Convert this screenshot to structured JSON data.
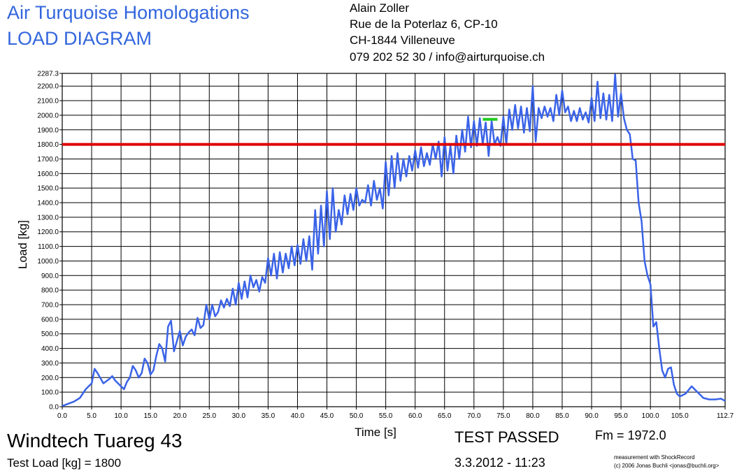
{
  "chart_data": {
    "type": "line",
    "title": "Air Turquoise Homologations",
    "subtitle": "LOAD DIAGRAM",
    "x_label": "Time [s]",
    "y_label": "Load [kg]",
    "color": "#3a63e8",
    "grid": true,
    "xlim": [
      0,
      112.7
    ],
    "ylim": [
      0,
      2287.3
    ],
    "xticks": [
      {
        "value": 0,
        "label": "0.0"
      },
      {
        "value": 5,
        "label": "5.0"
      },
      {
        "value": 10,
        "label": "10.0"
      },
      {
        "value": 15,
        "label": "15.0"
      },
      {
        "value": 20,
        "label": "20.0"
      },
      {
        "value": 25,
        "label": "25.0"
      },
      {
        "value": 30,
        "label": "30.0"
      },
      {
        "value": 35,
        "label": "35.0"
      },
      {
        "value": 40,
        "label": "40.0"
      },
      {
        "value": 45,
        "label": "45.0"
      },
      {
        "value": 50,
        "label": "50.0"
      },
      {
        "value": 55,
        "label": "55.0"
      },
      {
        "value": 60,
        "label": "60.0"
      },
      {
        "value": 65,
        "label": "65.0"
      },
      {
        "value": 70,
        "label": "70.0"
      },
      {
        "value": 75,
        "label": "75.0"
      },
      {
        "value": 80,
        "label": "80.0"
      },
      {
        "value": 85,
        "label": "85.0"
      },
      {
        "value": 90,
        "label": "90.0"
      },
      {
        "value": 95,
        "label": "95.0"
      },
      {
        "value": 100,
        "label": "100.0"
      },
      {
        "value": 105,
        "label": "105.0"
      },
      112.7
    ],
    "yticks": [
      {
        "value": 0,
        "label": "0.0"
      },
      {
        "value": 100,
        "label": "100.0"
      },
      {
        "value": 200,
        "label": "200.0"
      },
      {
        "value": 300,
        "label": "300.0"
      },
      {
        "value": 400,
        "label": "400.0"
      },
      {
        "value": 500,
        "label": "500.0"
      },
      {
        "value": 600,
        "label": "600.0"
      },
      {
        "value": 700,
        "label": "700.0"
      },
      {
        "value": 800,
        "label": "800.0"
      },
      {
        "value": 900,
        "label": "900.0"
      },
      {
        "value": 1000,
        "label": "1000.0"
      },
      {
        "value": 1100,
        "label": "1100.0"
      },
      {
        "value": 1200,
        "label": "1200.0"
      },
      {
        "value": 1300,
        "label": "1300.0"
      },
      {
        "value": 1400,
        "label": "1400.0"
      },
      {
        "value": 1500,
        "label": "1500.0"
      },
      {
        "value": 1600,
        "label": "1600.0"
      },
      {
        "value": 1700,
        "label": "1700.0"
      },
      {
        "value": 1800,
        "label": "1800.0"
      },
      {
        "value": 1900,
        "label": "1900.0"
      },
      {
        "value": 2000,
        "label": "2000.0"
      },
      {
        "value": 2100,
        "label": "2100.0"
      },
      {
        "value": 2200,
        "label": "2200.0"
      },
      2287.3
    ],
    "x": [
      0,
      1,
      2,
      3,
      4,
      5,
      5.5,
      6,
      7,
      8,
      8.5,
      9,
      10,
      10.5,
      11,
      11.5,
      12,
      12.5,
      13,
      13.5,
      14,
      14.5,
      15,
      15.5,
      16,
      16.5,
      17,
      17.5,
      18,
      18.5,
      19,
      19.5,
      20,
      20.5,
      21,
      21.5,
      22,
      22.5,
      23,
      23.5,
      24,
      24.5,
      25,
      25.5,
      26,
      26.5,
      27,
      27.5,
      28,
      28.5,
      29,
      29.5,
      30,
      30.5,
      31,
      31.5,
      32,
      32.5,
      33,
      33.5,
      34,
      34.5,
      35,
      35.5,
      36,
      36.5,
      37,
      37.5,
      38,
      38.5,
      39,
      39.5,
      40,
      40.5,
      41,
      41.5,
      42,
      42.5,
      43,
      43.5,
      44,
      44.5,
      45,
      45.5,
      46,
      46.5,
      47,
      47.5,
      48,
      48.5,
      49,
      49.5,
      50,
      50.5,
      51,
      51.5,
      52,
      52.5,
      53,
      53.5,
      54,
      54.5,
      55,
      55.5,
      56,
      56.5,
      57,
      57.5,
      58,
      58.5,
      59,
      59.5,
      60,
      60.5,
      61,
      61.5,
      62,
      62.5,
      63,
      63.5,
      64,
      64.5,
      65,
      65.5,
      66,
      66.5,
      67,
      67.5,
      68,
      68.5,
      69,
      69.5,
      70,
      70.5,
      71,
      71.5,
      72,
      72.5,
      73,
      73.5,
      74,
      74.5,
      75,
      75.5,
      76,
      76.5,
      77,
      77.5,
      78,
      78.5,
      79,
      79.5,
      80,
      80.5,
      81,
      81.5,
      82,
      82.5,
      83,
      83.5,
      84,
      84.5,
      85,
      85.5,
      86,
      86.5,
      87,
      87.5,
      88,
      88.5,
      89,
      89.5,
      90,
      90.5,
      91,
      91.5,
      92,
      92.5,
      93,
      93.5,
      94,
      94.5,
      95,
      95.5,
      96,
      96.5,
      97,
      97.5,
      98,
      98.5,
      99,
      99.5,
      100,
      100.5,
      101,
      101.5,
      102,
      102.5,
      103,
      103.5,
      104,
      104.5,
      105,
      106,
      107,
      108,
      109,
      110,
      111,
      112,
      112.7
    ],
    "values": [
      5,
      20,
      35,
      60,
      120,
      160,
      260,
      230,
      160,
      190,
      210,
      180,
      140,
      120,
      170,
      200,
      280,
      250,
      200,
      230,
      330,
      300,
      220,
      250,
      350,
      430,
      400,
      310,
      550,
      590,
      380,
      450,
      520,
      420,
      480,
      510,
      530,
      490,
      610,
      540,
      560,
      700,
      600,
      700,
      620,
      650,
      730,
      680,
      740,
      690,
      810,
      700,
      850,
      740,
      860,
      750,
      900,
      820,
      870,
      790,
      890,
      850,
      1020,
      900,
      1050,
      880,
      1060,
      920,
      1050,
      950,
      1100,
      970,
      1110,
      980,
      1150,
      1000,
      1170,
      940,
      1350,
      1050,
      1380,
      1100,
      1480,
      1150,
      1500,
      1200,
      1350,
      1250,
      1450,
      1320,
      1460,
      1350,
      1500,
      1380,
      1420,
      1400,
      1520,
      1380,
      1550,
      1420,
      1500,
      1360,
      1680,
      1450,
      1720,
      1500,
      1740,
      1550,
      1700,
      1580,
      1720,
      1620,
      1760,
      1640,
      1780,
      1650,
      1740,
      1660,
      1800,
      1700,
      1820,
      1580,
      1850,
      1620,
      1790,
      1600,
      1860,
      1700,
      1900,
      1750,
      1990,
      1780,
      1960,
      1790,
      1980,
      1800,
      1950,
      1720,
      1960,
      1800,
      1850,
      1790,
      1990,
      1800,
      2040,
      1900,
      2070,
      1910,
      2060,
      1880,
      2050,
      1890,
      2200,
      1820,
      2050,
      1980,
      2060,
      1990,
      2050,
      1960,
      2140,
      2000,
      2170,
      2020,
      2060,
      1960,
      2030,
      1960,
      2050,
      1970,
      2020,
      1950,
      2120,
      1960,
      2230,
      1980,
      2150,
      1970,
      2140,
      1960,
      2280,
      1990,
      2150,
      1980,
      1900,
      1870,
      1700,
      1690,
      1400,
      1270,
      1000,
      900,
      840,
      550,
      580,
      400,
      250,
      200,
      260,
      270,
      150,
      90,
      70,
      90,
      140,
      100,
      60,
      50,
      50,
      55,
      40
    ],
    "test_load": {
      "label": "Test Load [kg] =",
      "value": 1800,
      "color": "#e00000"
    },
    "fm": {
      "label": "Fm =",
      "value": 1972,
      "value_label": "1972.0",
      "x": [
        71.5,
        74
      ],
      "color": "#22cc22"
    }
  },
  "contact": [
    "Alain Zoller",
    "Rue de la Poterlaz 6, CP-10",
    "CH-1844 Villeneuve",
    "079 202 52 30 / info@airturquoise.ch"
  ],
  "footer": {
    "model": "Windtech Tuareg 43",
    "result": "TEST PASSED",
    "date": "3.3.2012 - 11:23",
    "credit": [
      "measurement with ShockRecord",
      "(c) 2006 Jonas Buchli <jonas@buchli.org>"
    ]
  }
}
